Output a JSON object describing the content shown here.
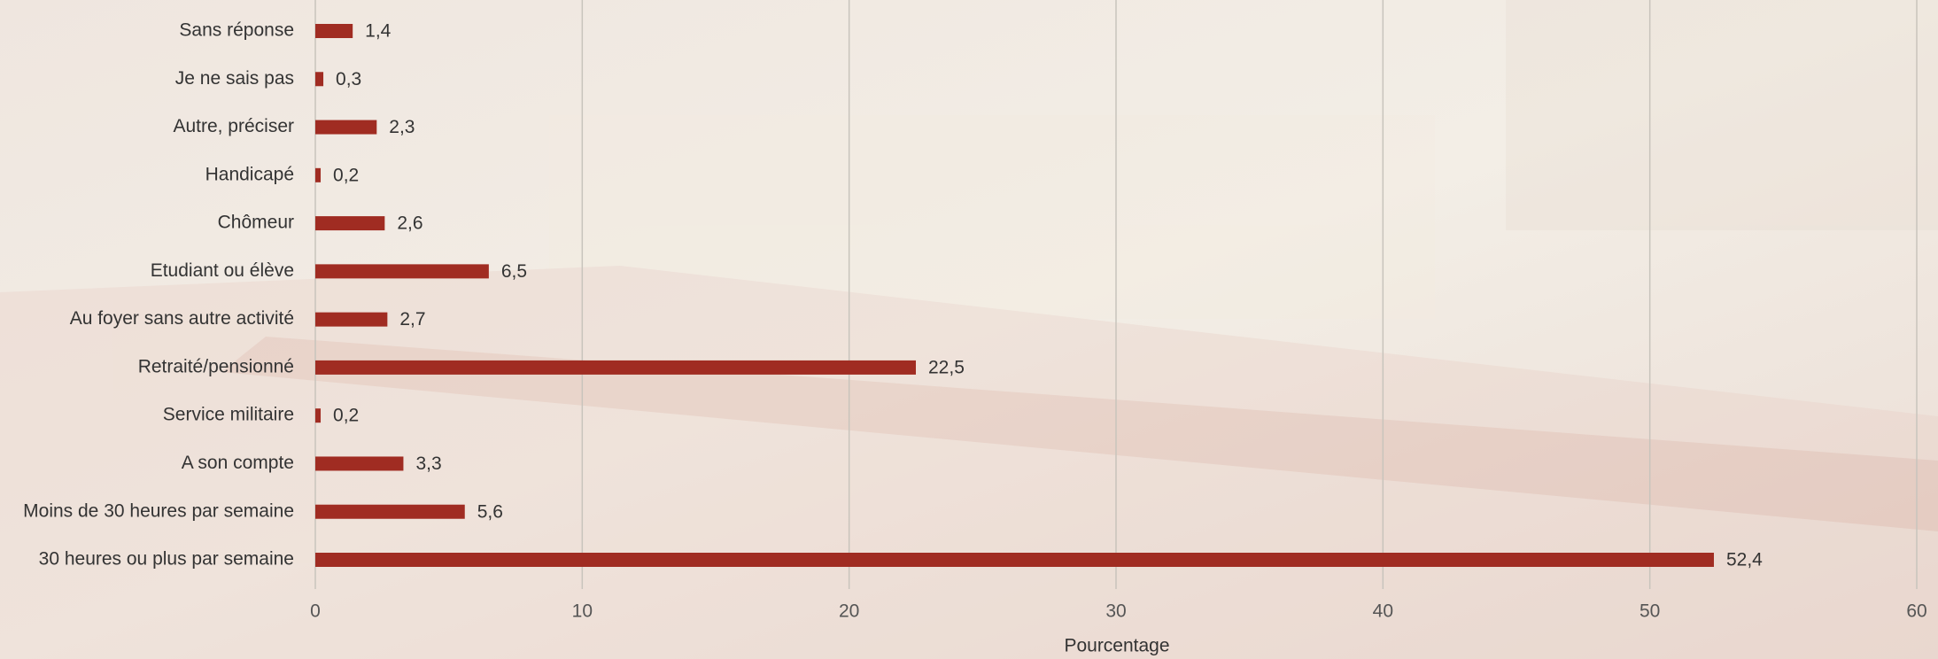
{
  "chart_data": {
    "type": "hbar",
    "categories": [
      "Sans réponse",
      "Je ne sais pas",
      "Autre, préciser",
      "Handicapé",
      "Chômeur",
      "Etudiant ou élève",
      "Au foyer sans autre activité",
      "Retraité/pensionné",
      "Service militaire",
      "A son compte",
      "Moins de 30 heures par semaine",
      "30 heures ou plus par semaine"
    ],
    "values": [
      1.4,
      0.3,
      2.3,
      0.2,
      2.6,
      6.5,
      2.7,
      22.5,
      0.2,
      3.3,
      5.6,
      52.4
    ],
    "value_labels": [
      "1,4",
      "0,3",
      "2,3",
      "0,2",
      "2,6",
      "6,5",
      "2,7",
      "22,5",
      "0,2",
      "3,3",
      "5,6",
      "52,4"
    ],
    "color": "#a02c22",
    "xlabel": "Pourcentage",
    "xlim": [
      0,
      60
    ],
    "xticks": [
      0,
      10,
      20,
      30,
      40,
      50,
      60
    ],
    "grid": true
  }
}
